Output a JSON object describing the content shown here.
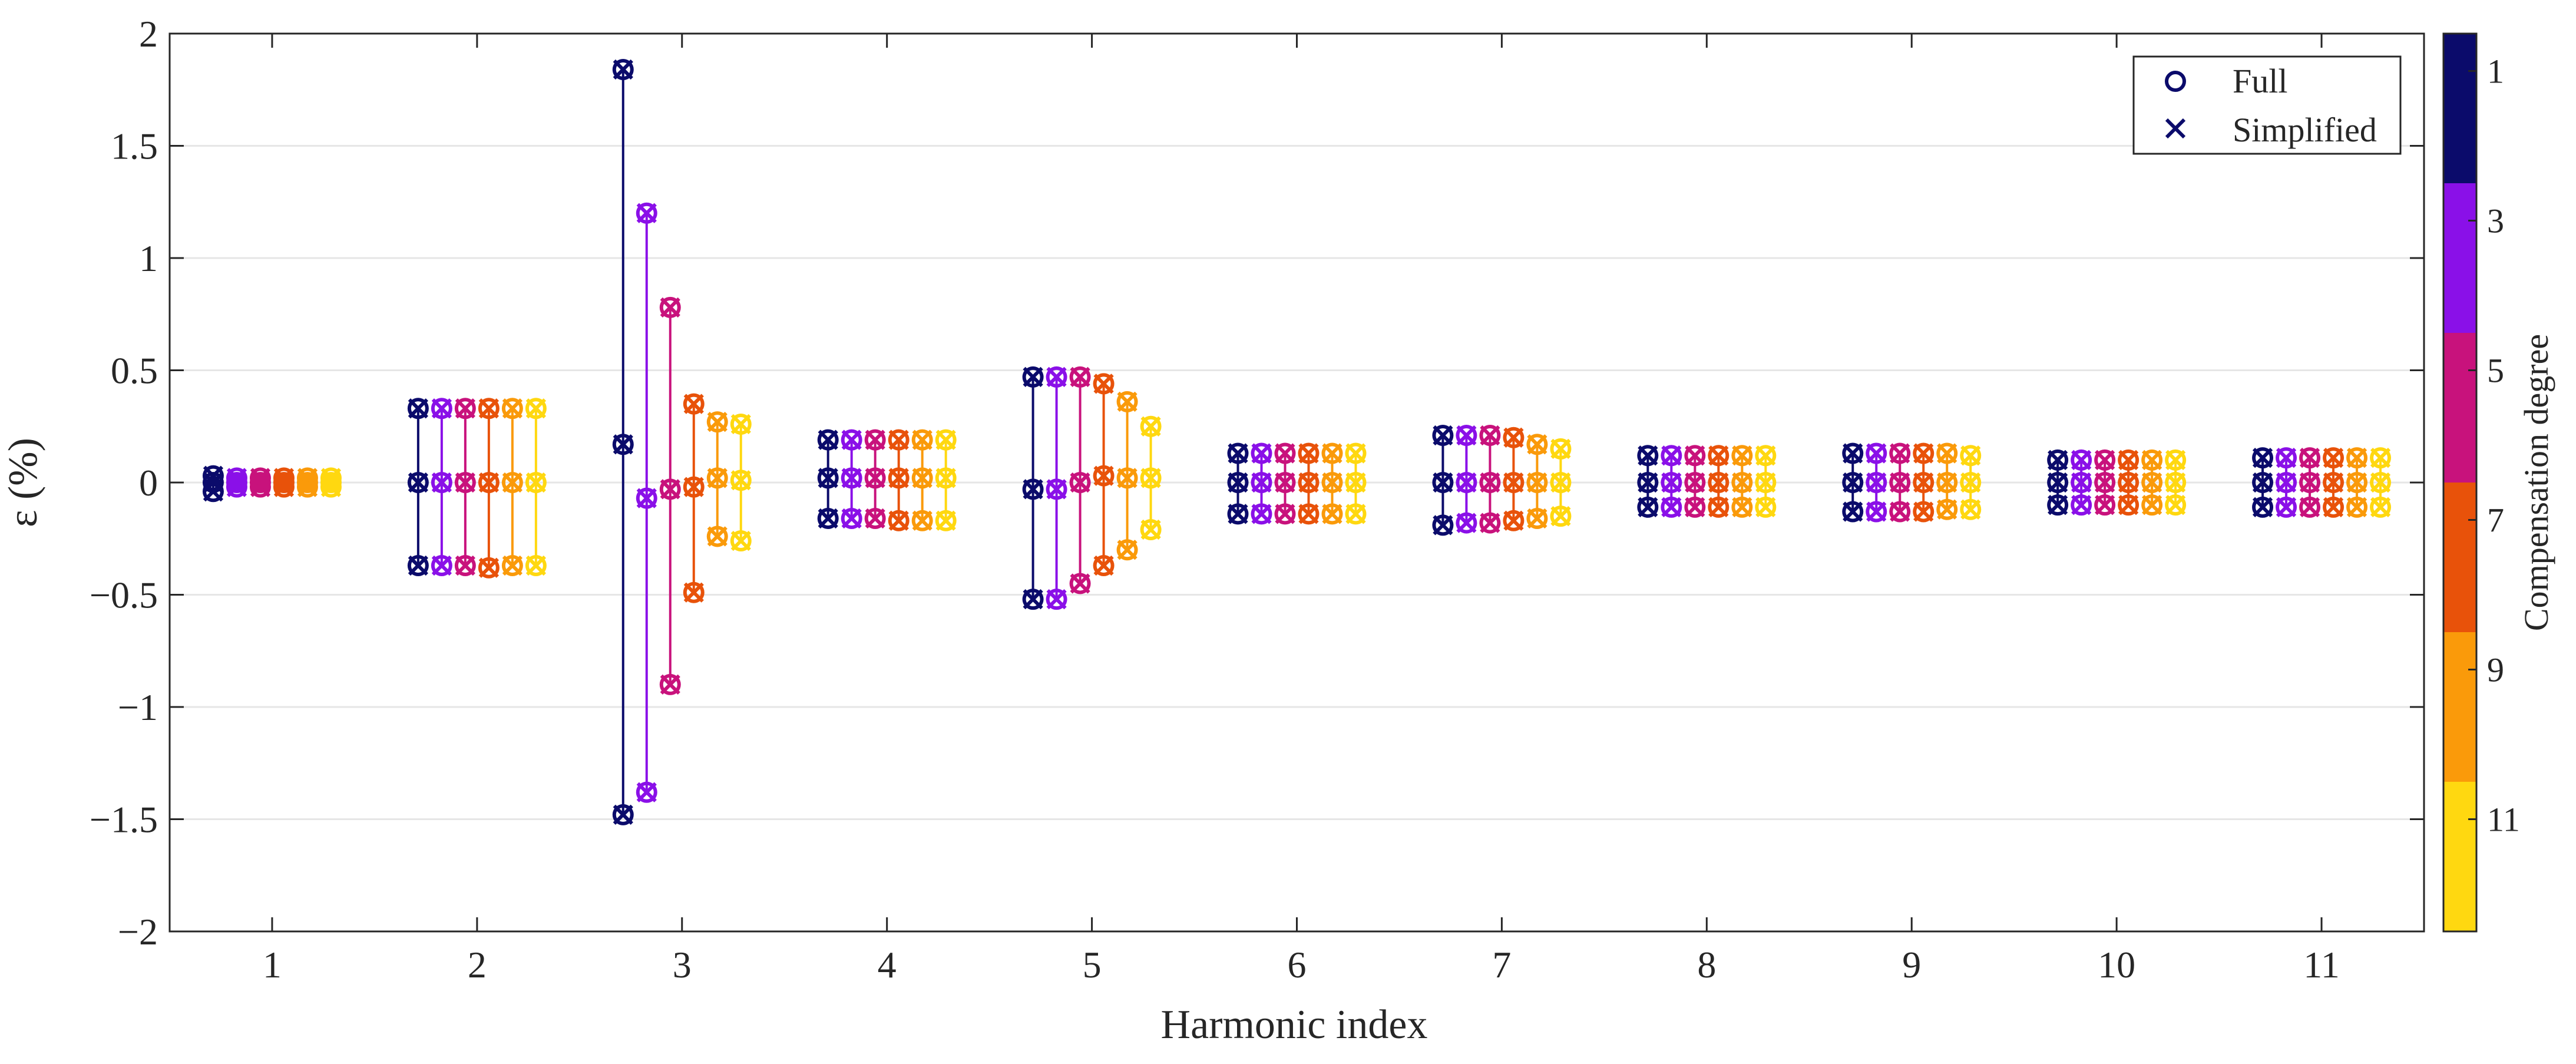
{
  "chart_data": {
    "type": "scatter",
    "xlabel": "Harmonic index",
    "ylabel": "ε (%)",
    "categories": [
      "1",
      "2",
      "3",
      "4",
      "5",
      "6",
      "7",
      "8",
      "9",
      "10",
      "11"
    ],
    "ylim": [
      -2,
      2
    ],
    "yticks": [
      -2,
      -1.5,
      -1,
      -0.5,
      0,
      0.5,
      1,
      1.5,
      2
    ],
    "ytick_labels": [
      "−2",
      "−1.5",
      "−1",
      "−0.5",
      "0",
      "0.5",
      "1",
      "1.5",
      "2"
    ],
    "grid": true,
    "legend": {
      "position": "top-right",
      "entries": [
        {
          "label": "Full",
          "marker": "circle"
        },
        {
          "label": "Simplified",
          "marker": "x"
        }
      ]
    },
    "colorbar": {
      "label": "Compensation degree",
      "ticks": [
        "1",
        "3",
        "5",
        "7",
        "9",
        "11"
      ],
      "colors": [
        "#0b0b6b",
        "#8a10e8",
        "#c8127c",
        "#e8520a",
        "#fa9a0a",
        "#ffd810"
      ]
    },
    "series": [
      {
        "compensation_degree": 1,
        "values": [
          [
            -0.04,
            0.0,
            0.03
          ],
          [
            -0.37,
            0.0,
            0.33
          ],
          [
            -1.48,
            0.17,
            1.84
          ],
          [
            -0.16,
            0.02,
            0.19
          ],
          [
            -0.52,
            -0.03,
            0.47
          ],
          [
            -0.14,
            0.0,
            0.13
          ],
          [
            -0.19,
            0.0,
            0.21
          ],
          [
            -0.11,
            0.0,
            0.12
          ],
          [
            -0.13,
            0.0,
            0.13
          ],
          [
            -0.1,
            0.0,
            0.1
          ],
          [
            -0.11,
            0.0,
            0.11
          ]
        ]
      },
      {
        "compensation_degree": 3,
        "values": [
          [
            -0.02,
            0.0,
            0.02
          ],
          [
            -0.37,
            0.0,
            0.33
          ],
          [
            -1.38,
            -0.07,
            1.2
          ],
          [
            -0.16,
            0.02,
            0.19
          ],
          [
            -0.52,
            -0.03,
            0.47
          ],
          [
            -0.14,
            0.0,
            0.13
          ],
          [
            -0.18,
            0.0,
            0.21
          ],
          [
            -0.11,
            0.0,
            0.12
          ],
          [
            -0.13,
            0.0,
            0.13
          ],
          [
            -0.1,
            0.0,
            0.1
          ],
          [
            -0.11,
            0.0,
            0.11
          ]
        ]
      },
      {
        "compensation_degree": 5,
        "values": [
          [
            -0.02,
            0.0,
            0.02
          ],
          [
            -0.37,
            0.0,
            0.33
          ],
          [
            -0.9,
            -0.03,
            0.78
          ],
          [
            -0.16,
            0.02,
            0.19
          ],
          [
            -0.45,
            0.0,
            0.47
          ],
          [
            -0.14,
            0.0,
            0.13
          ],
          [
            -0.18,
            0.0,
            0.21
          ],
          [
            -0.11,
            0.0,
            0.12
          ],
          [
            -0.13,
            0.0,
            0.13
          ],
          [
            -0.1,
            0.0,
            0.1
          ],
          [
            -0.11,
            0.0,
            0.11
          ]
        ]
      },
      {
        "compensation_degree": 7,
        "values": [
          [
            -0.02,
            0.0,
            0.02
          ],
          [
            -0.38,
            0.0,
            0.33
          ],
          [
            -0.49,
            -0.02,
            0.35
          ],
          [
            -0.17,
            0.02,
            0.19
          ],
          [
            -0.37,
            0.03,
            0.44
          ],
          [
            -0.14,
            0.0,
            0.13
          ],
          [
            -0.17,
            0.0,
            0.2
          ],
          [
            -0.11,
            0.0,
            0.12
          ],
          [
            -0.13,
            0.0,
            0.13
          ],
          [
            -0.1,
            0.0,
            0.1
          ],
          [
            -0.11,
            0.0,
            0.11
          ]
        ]
      },
      {
        "compensation_degree": 9,
        "values": [
          [
            -0.02,
            0.0,
            0.02
          ],
          [
            -0.37,
            0.0,
            0.33
          ],
          [
            -0.24,
            0.02,
            0.27
          ],
          [
            -0.17,
            0.02,
            0.19
          ],
          [
            -0.3,
            0.02,
            0.36
          ],
          [
            -0.14,
            0.0,
            0.13
          ],
          [
            -0.16,
            0.0,
            0.17
          ],
          [
            -0.11,
            0.0,
            0.12
          ],
          [
            -0.12,
            0.0,
            0.13
          ],
          [
            -0.1,
            0.0,
            0.1
          ],
          [
            -0.11,
            0.0,
            0.11
          ]
        ]
      },
      {
        "compensation_degree": 11,
        "values": [
          [
            -0.02,
            0.0,
            0.02
          ],
          [
            -0.37,
            0.0,
            0.33
          ],
          [
            -0.26,
            0.01,
            0.26
          ],
          [
            -0.17,
            0.02,
            0.19
          ],
          [
            -0.21,
            0.02,
            0.25
          ],
          [
            -0.14,
            0.0,
            0.13
          ],
          [
            -0.15,
            0.0,
            0.15
          ],
          [
            -0.11,
            0.0,
            0.12
          ],
          [
            -0.12,
            0.0,
            0.12
          ],
          [
            -0.1,
            0.0,
            0.1
          ],
          [
            -0.11,
            0.0,
            0.11
          ]
        ]
      }
    ]
  }
}
